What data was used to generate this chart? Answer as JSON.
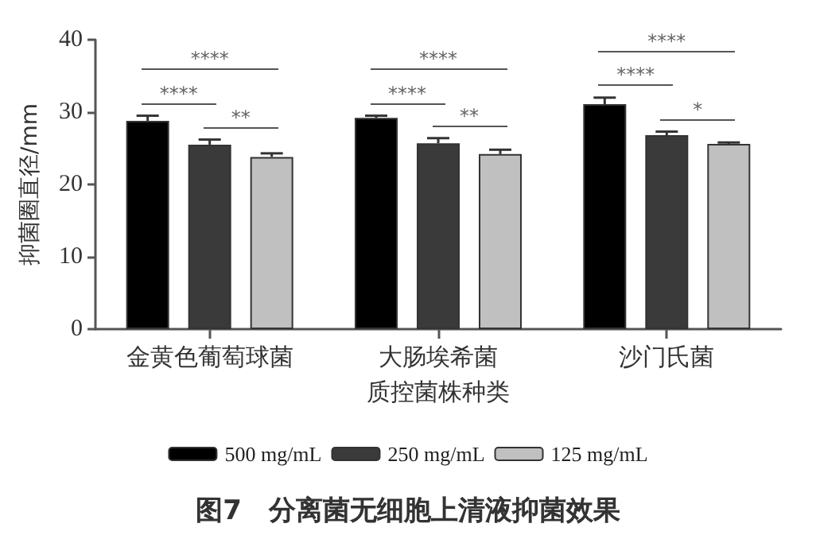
{
  "chart_data": {
    "type": "bar",
    "title": "图7　分离菌无细胞上清液抑菌效果",
    "xlabel": "质控菌株种类",
    "ylabel": "抑菌圈直径/mm",
    "categories": [
      "金黄色葡萄球菌",
      "大肠埃希菌",
      "沙门氏菌"
    ],
    "series": [
      {
        "name": "500 mg/mL",
        "color": "#000000",
        "values": [
          28.8,
          29.2,
          31.1
        ],
        "errors": [
          0.7,
          0.3,
          0.9
        ]
      },
      {
        "name": "250 mg/mL",
        "color": "#3a3a3a",
        "values": [
          25.5,
          25.7,
          26.8
        ],
        "errors": [
          0.7,
          0.7,
          0.5
        ]
      },
      {
        "name": "125 mg/mL",
        "color": "#c0c0c0",
        "values": [
          23.8,
          24.2,
          25.6
        ],
        "errors": [
          0.5,
          0.6,
          0.2
        ]
      }
    ],
    "ylim": [
      0,
      40
    ],
    "yticks": [
      0,
      10,
      20,
      30,
      40
    ],
    "grid": false,
    "legend": "bottom",
    "annotations": [
      "****",
      "****",
      "**",
      "****",
      "****",
      "**",
      "****",
      "****",
      "*"
    ]
  }
}
